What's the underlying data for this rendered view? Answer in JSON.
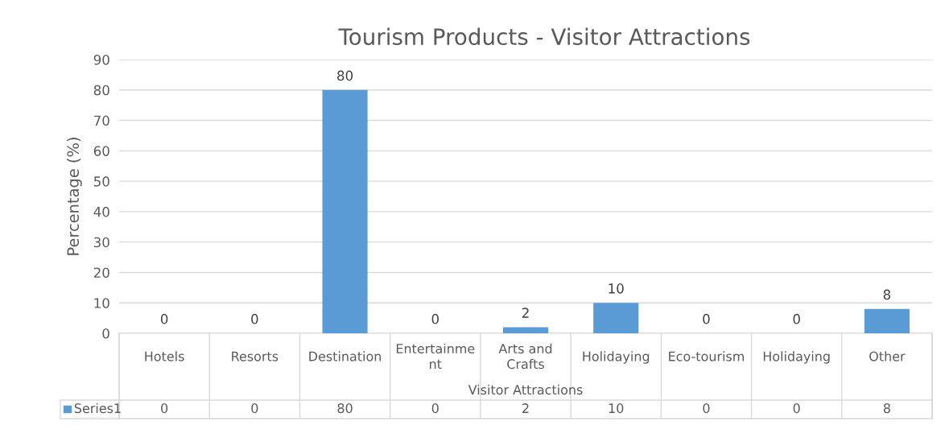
{
  "chart_data": {
    "type": "bar",
    "title": "Tourism Products - Visitor Attractions",
    "xlabel": "Visitor Attractions",
    "ylabel": "Percentage (%)",
    "categories": [
      "Hotels",
      "Resorts",
      "Destination",
      "Entertainment",
      "Arts and Crafts",
      "Holidaying",
      "Eco-tourism",
      "Holidaying",
      "Other"
    ],
    "series": [
      {
        "name": "Series1",
        "color": "#5b9bd5",
        "values": [
          0,
          0,
          80,
          0,
          2,
          10,
          0,
          0,
          8
        ],
        "value_labels": [
          "0",
          "0",
          "80",
          "0",
          "2",
          "10",
          "0",
          "0",
          "8"
        ]
      }
    ],
    "ylim": [
      0,
      90
    ],
    "yticks": [
      0,
      10,
      20,
      30,
      40,
      50,
      60,
      70,
      80,
      90
    ],
    "grid": "y",
    "legend": "bottom",
    "annotations": [
      "0",
      "0",
      "80",
      "0",
      "2",
      "10",
      "0",
      "0",
      "8"
    ]
  }
}
